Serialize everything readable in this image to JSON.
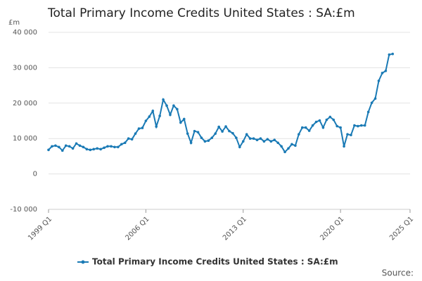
{
  "chart_data": {
    "type": "line",
    "title": "Total Primary Income Credits United States : SA:£m",
    "y_label": "£m",
    "source": "Source:",
    "x": [
      1999,
      1999.25,
      1999.5,
      1999.75,
      2000,
      2000.25,
      2000.5,
      2000.75,
      2001,
      2001.25,
      2001.5,
      2001.75,
      2002,
      2002.25,
      2002.5,
      2002.75,
      2003,
      2003.25,
      2003.5,
      2003.75,
      2004,
      2004.25,
      2004.5,
      2004.75,
      2005,
      2005.25,
      2005.5,
      2005.75,
      2006,
      2006.25,
      2006.5,
      2006.75,
      2007,
      2007.25,
      2007.5,
      2007.75,
      2008,
      2008.25,
      2008.5,
      2008.75,
      2009,
      2009.25,
      2009.5,
      2009.75,
      2010,
      2010.25,
      2010.5,
      2010.75,
      2011,
      2011.25,
      2011.5,
      2011.75,
      2012,
      2012.25,
      2012.5,
      2012.75,
      2013,
      2013.25,
      2013.5,
      2013.75,
      2014,
      2014.25,
      2014.5,
      2014.75,
      2015,
      2015.25,
      2015.5,
      2015.75,
      2016,
      2016.25,
      2016.5,
      2016.75,
      2017,
      2017.25,
      2017.5,
      2017.75,
      2018,
      2018.25,
      2018.5,
      2018.75,
      2019,
      2019.25,
      2019.5,
      2019.75,
      2020,
      2020.25,
      2020.5,
      2020.75,
      2021,
      2021.25,
      2021.5,
      2021.75,
      2022,
      2022.25,
      2022.5,
      2022.75,
      2023,
      2023.25,
      2023.5,
      2023.75
    ],
    "series": [
      {
        "name": "Total Primary Income Credits United States : SA:£m",
        "color": "#1a7ab5",
        "values": [
          6800,
          7800,
          8000,
          7600,
          6600,
          8000,
          7800,
          7200,
          8600,
          8000,
          7600,
          7000,
          6800,
          7000,
          7200,
          7000,
          7400,
          7800,
          7800,
          7600,
          7600,
          8400,
          8800,
          10000,
          9800,
          11400,
          12800,
          13000,
          15000,
          16200,
          17800,
          13400,
          16400,
          21000,
          19300,
          16700,
          19300,
          18300,
          14500,
          15500,
          11400,
          8800,
          12100,
          11800,
          10200,
          9200,
          9400,
          10200,
          11400,
          13300,
          12000,
          13400,
          12100,
          11500,
          10200,
          7600,
          9200,
          11200,
          10000,
          10000,
          9600,
          10000,
          9200,
          9800,
          9200,
          9600,
          8800,
          7800,
          6200,
          7200,
          8400,
          8000,
          11200,
          13100,
          13100,
          12200,
          13700,
          14700,
          15100,
          13100,
          15300,
          16100,
          15300,
          13500,
          13100,
          7800,
          11200,
          11000,
          13700,
          13500,
          13700,
          13700,
          17500,
          20100,
          21300,
          26300,
          28500,
          29100,
          33700,
          33900
        ]
      }
    ],
    "xlim": [
      1999,
      2025
    ],
    "xticks": [
      {
        "value": 1999,
        "label": "1999 Q1"
      },
      {
        "value": 2006,
        "label": "2006 Q1"
      },
      {
        "value": 2013,
        "label": "2013 Q1"
      },
      {
        "value": 2020,
        "label": "2020 Q1"
      },
      {
        "value": 2025,
        "label": "2025 Q1"
      }
    ],
    "ylim": [
      -10000,
      40000
    ],
    "yticks": [
      {
        "value": -10000,
        "label": "-10 000"
      },
      0,
      {
        "value": 10000,
        "label": "10 000"
      },
      {
        "value": 20000,
        "label": "20 000"
      },
      {
        "value": 30000,
        "label": "30 000"
      },
      {
        "value": 40000,
        "label": "40 000"
      }
    ],
    "grid": true
  }
}
